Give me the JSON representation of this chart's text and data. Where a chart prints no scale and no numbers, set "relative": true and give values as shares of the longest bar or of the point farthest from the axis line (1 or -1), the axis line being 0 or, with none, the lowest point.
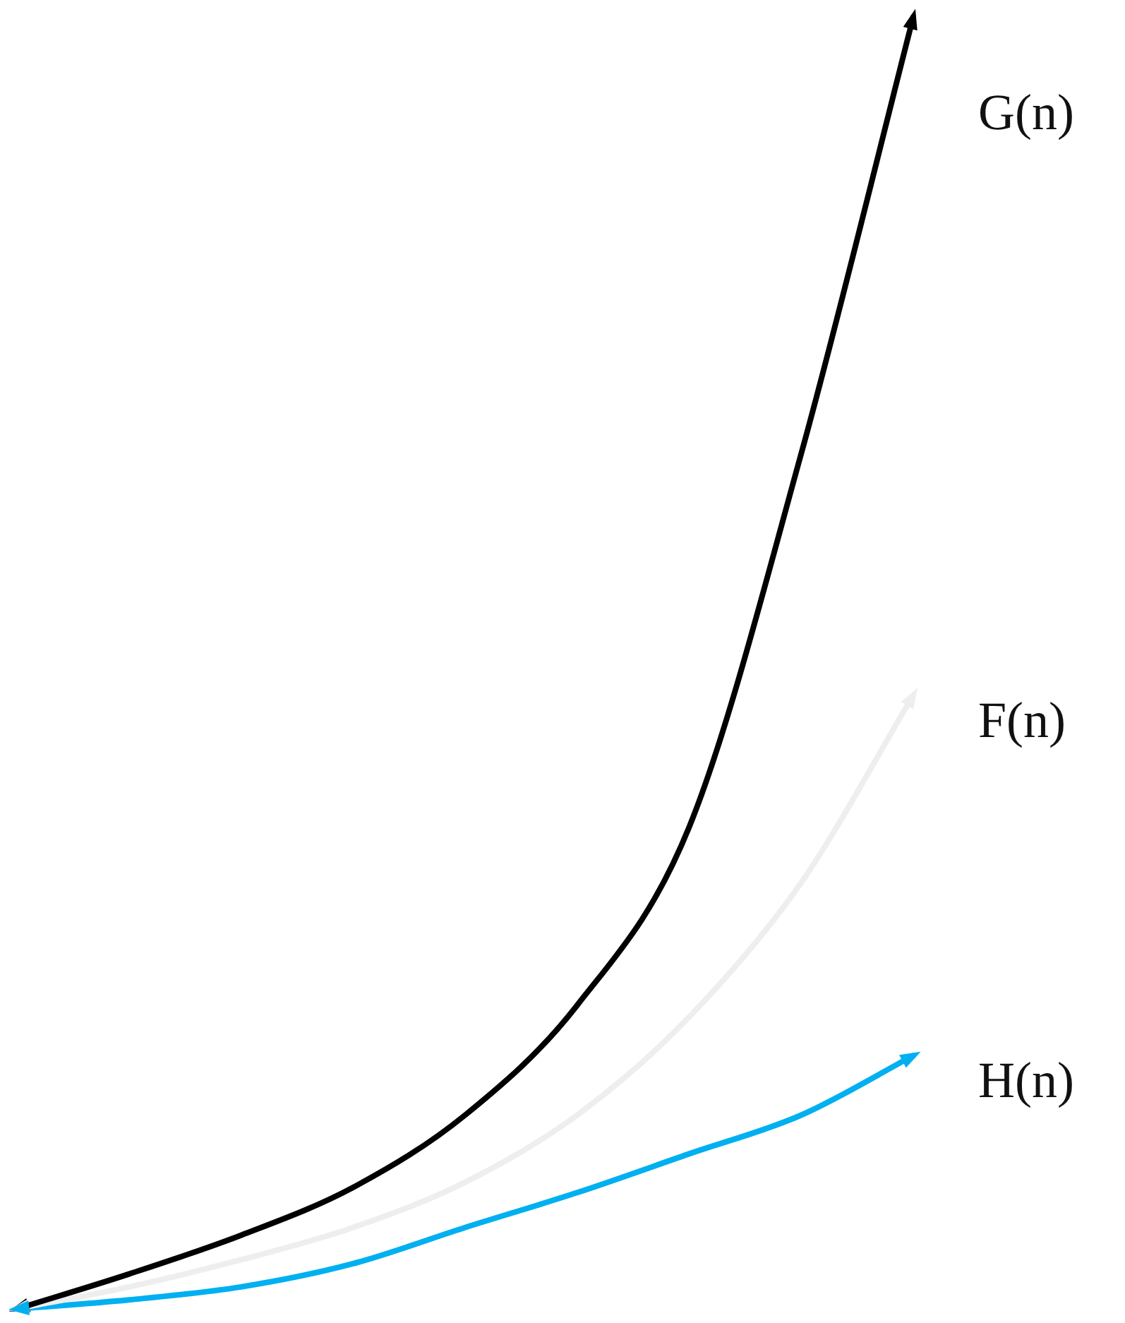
{
  "chart_data": {
    "type": "line",
    "relative": true,
    "categories": [
      null,
      null,
      null,
      null,
      null,
      null,
      null,
      null,
      null
    ],
    "legend": false,
    "marker": "none",
    "line_style": "solid",
    "series": [
      {
        "name": "G(n)",
        "color": "#000000",
        "values": [
          0,
          0.027,
          0.057,
          0.094,
          0.15,
          0.235,
          0.373,
          0.662,
          1
        ]
      },
      {
        "name": "F(n)",
        "color": "#eeeeee",
        "values": [
          0,
          0.017,
          0.038,
          0.063,
          0.098,
          0.15,
          0.226,
          0.33,
          0.475
        ]
      },
      {
        "name": "H(n)",
        "color": "#00b0f0",
        "values": [
          0,
          0.007,
          0.017,
          0.035,
          0.063,
          0.09,
          0.12,
          0.15,
          0.196
        ]
      }
    ]
  }
}
